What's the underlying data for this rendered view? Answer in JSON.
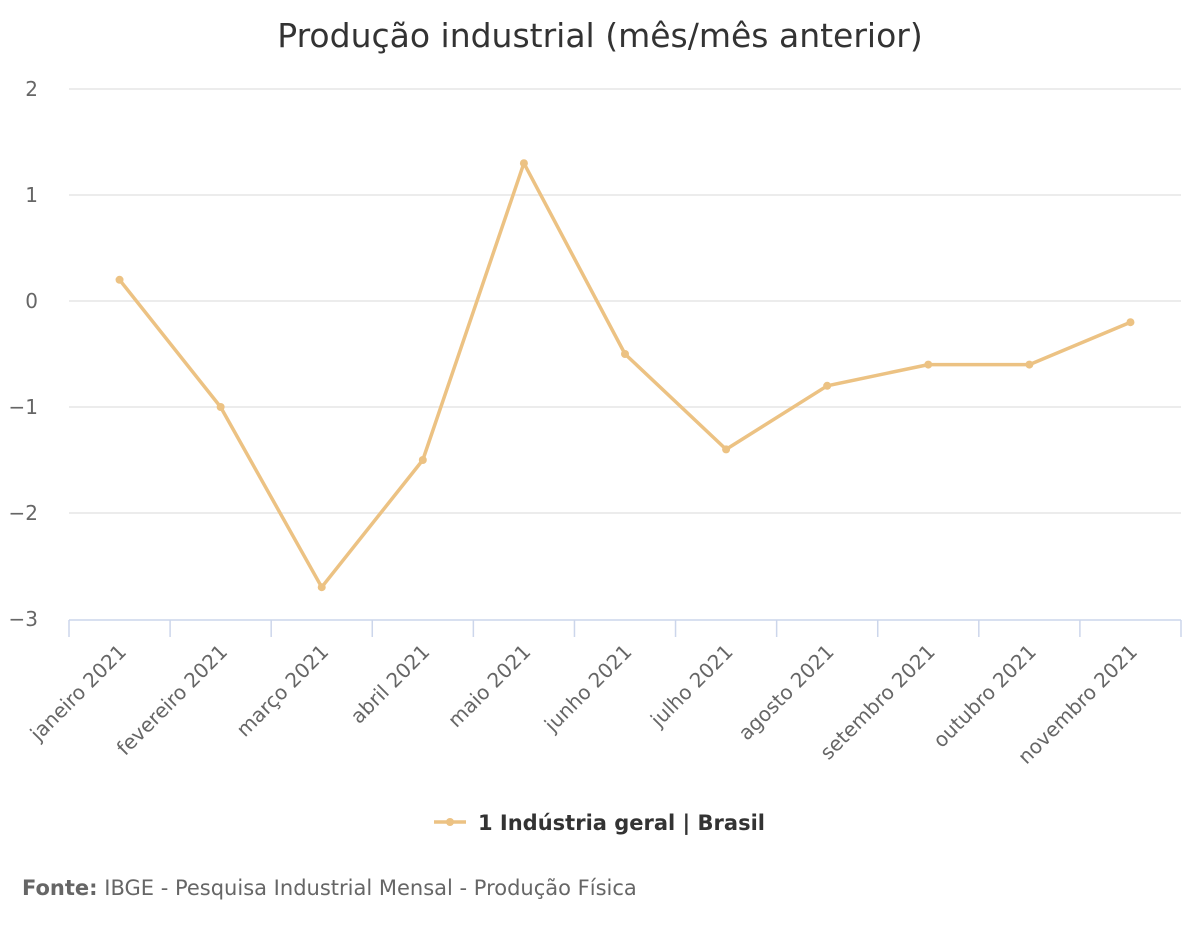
{
  "chart_data": {
    "type": "line",
    "title": "Produção industrial (mês/mês anterior)",
    "categories": [
      "janeiro 2021",
      "fevereiro 2021",
      "março 2021",
      "abril 2021",
      "maio 2021",
      "junho 2021",
      "julho 2021",
      "agosto 2021",
      "setembro 2021",
      "outubro 2021",
      "novembro 2021"
    ],
    "series": [
      {
        "name": "1 Indústria geral | Brasil",
        "color": "#ecc283",
        "values": [
          0.2,
          -1.0,
          -2.7,
          -1.5,
          1.3,
          -0.5,
          -1.4,
          -0.8,
          -0.6,
          -0.6,
          -0.2
        ]
      }
    ],
    "yticks": [
      2,
      1,
      0,
      -1,
      -2,
      -3
    ],
    "ytick_labels": [
      "2",
      "1",
      "0",
      "−1",
      "−2",
      "−3"
    ],
    "ylim": [
      -3,
      2
    ],
    "grid": true,
    "legend_position": "bottom-center"
  },
  "source": {
    "label": "Fonte:",
    "text": "IBGE - Pesquisa Industrial Mensal - Produção Física"
  }
}
